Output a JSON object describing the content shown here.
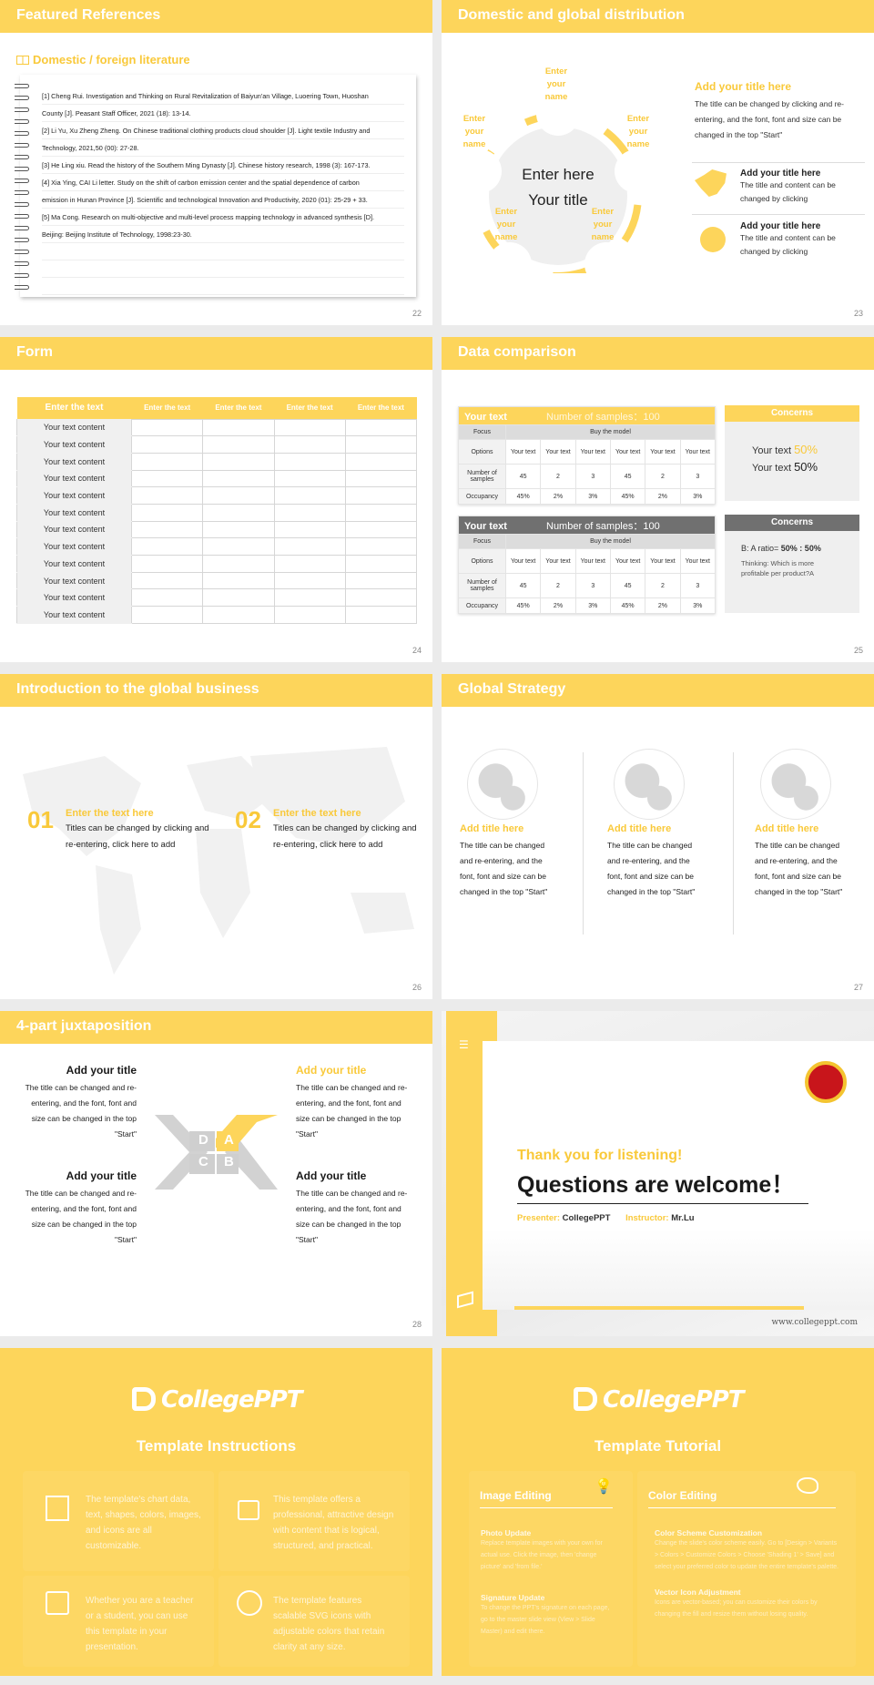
{
  "colors": {
    "accent": "#fdd55b",
    "dark_header": "#6f6f6f",
    "text": "#333333"
  },
  "s22": {
    "title": "Featured References",
    "subtitle": "Domestic / foreign literature",
    "icon": "book-icon",
    "page": "22",
    "lines": [
      "[1] Cheng Rui. Investigation and Thinking on Rural Revitalization of Baiyun'an Village, Luoering Town, Huoshan",
      "County [J]. Peasant Staff Officer, 2021 (18): 13-14.",
      "[2] Li Yu, Xu Zheng Zheng. On Chinese traditional clothing products cloud shoulder [J]. Light textile Industry and",
      "Technology, 2021,50 (00): 27-28.",
      "[3] He Ling xiu. Read the history of the Southern Ming Dynasty [J]. Chinese history research, 1998 (3): 167-173.",
      "[4] Xia Ying, CAI Li letter. Study on the shift of carbon emission center and the spatial dependence of carbon",
      "emission in Hunan Province [J]. Scientific and technological Innovation and Productivity, 2020 (01): 25-29 + 33.",
      "[5] Ma Cong. Research on multi-objective and multi-level process mapping technology in advanced synthesis [D].",
      "Beijing: Beijing Institute of Technology, 1998:23-30."
    ]
  },
  "s23": {
    "title": "Domestic and global distribution",
    "page": "23",
    "node_label": "Enter your name",
    "center1": "Enter here",
    "center2": "Your title",
    "main_title": "Add your title here",
    "main_text": "The title can be changed by clicking and re-entering, and the font, font and size can be changed in the top \"Start\"",
    "items": [
      {
        "icon": "china-map-icon",
        "title": "Add your title here",
        "text": "The title and content can be changed by clicking"
      },
      {
        "icon": "globe-icon",
        "title": "Add your title here",
        "text": "The title and content can be changed by clicking"
      }
    ]
  },
  "s24": {
    "title": "Form",
    "page": "24",
    "headers": [
      "Enter the text",
      "Enter the text",
      "Enter the text",
      "Enter the text",
      "Enter the text"
    ],
    "row_label": "Your text content",
    "rows": 12
  },
  "s25": {
    "title": "Data comparison",
    "page": "25",
    "table": {
      "head_left": "Your text",
      "head_right": "Number of samples：100",
      "focus": "Focus",
      "focus_val": "Buy the model",
      "options": "Options",
      "option_val": "Your text",
      "samples": "Number of samples",
      "samples_vals": [
        "45",
        "2",
        "3",
        "45",
        "2",
        "3"
      ],
      "occupancy": "Occupancy",
      "occupancy_vals": [
        "45%",
        "2%",
        "3%",
        "45%",
        "2%",
        "3%"
      ]
    },
    "concern1": {
      "title": "Concerns",
      "line1": "Your text",
      "val1": "50%",
      "line2": "Your text",
      "val2": "50%"
    },
    "concern2": {
      "title": "Concerns",
      "ratio_label": "B: A ratio=",
      "ratio_val": "50% : 50%",
      "thinking": "Thinking: Which is more profitable per product?A"
    }
  },
  "s26": {
    "title": "Introduction to the global business",
    "page": "26",
    "items": [
      {
        "num": "01",
        "title": "Enter the text here",
        "text": "Titles can be changed by clicking and re-entering, click here to add"
      },
      {
        "num": "02",
        "title": "Enter the text here",
        "text": "Titles can be changed by clicking and re-entering, click here to add"
      }
    ]
  },
  "s27": {
    "title": "Global Strategy",
    "page": "27",
    "cols": [
      {
        "title": "Add title here",
        "text": "The title can be changed and re-entering, and the font, font and size can be changed in the top \"Start\""
      },
      {
        "title": "Add title here",
        "text": "The title can be changed and re-entering, and the font, font and size can be changed in the top \"Start\""
      },
      {
        "title": "Add title here",
        "text": "The title can be changed and re-entering, and the font, font and size can be changed in the top \"Start\""
      }
    ]
  },
  "s28": {
    "title": "4-part juxtaposition",
    "page": "28",
    "letters": [
      "D",
      "A",
      "C",
      "B"
    ],
    "parts": [
      {
        "title": "Add your title",
        "text": "The title can be changed and re-entering, and the font, font and size can be changed in the top \"Start\""
      },
      {
        "title": "Add your title",
        "text": "The title can be changed and re-entering, and the font, font and size can be changed in the top \"Start\""
      },
      {
        "title": "Add your title",
        "text": "The title can be changed and re-entering, and the font, font and size can be changed in the top \"Start\""
      },
      {
        "title": "Add your title",
        "text": "The title can be changed and re-entering, and the font, font and size can be changed in the top \"Start\""
      }
    ]
  },
  "s29": {
    "thanks": "Thank you for listening!",
    "questions": "Questions are welcome！",
    "presenter_label": "Presenter:",
    "presenter": "CollegePPT",
    "instructor_label": "Instructor:",
    "instructor": "Mr.Lu",
    "url": "www.collegeppt.com"
  },
  "s30": {
    "logo": "CollegePPT",
    "title": "Template Instructions",
    "items": [
      "The template's chart data, text, shapes, colors, images, and icons are all customizable.",
      "This template offers a professional, attractive design with content that is logical, structured, and practical.",
      "Whether you are a teacher or a student, you can use this template in your presentation.",
      "The template features scalable SVG icons with adjustable colors that retain clarity at any size."
    ]
  },
  "s31": {
    "logo": "CollegePPT",
    "title": "Template Tutorial",
    "image_editing": "Image Editing",
    "color_editing": "Color Editing",
    "photo_title": "Photo Update",
    "photo_text": "Replace template images with your own for actual use. Click the image, then 'change picture' and 'from file.'",
    "sig_title": "Signature Update",
    "sig_text": "To change the PPT's signature on each page, go to the master slide view (View > Slide Master) and edit there.",
    "scheme_title": "Color Scheme Customization",
    "scheme_text": "Change the slide's color scheme easily. Go to [Design > Variants > Colors > Customize Colors > Choose 'Shading 1' > Save] and select your preferred color to update the entire template's palette.",
    "vector_title": "Vector Icon Adjustment",
    "vector_text": "Icons are vector-based; you can customize their colors by changing the fill and resize them without losing quality."
  }
}
